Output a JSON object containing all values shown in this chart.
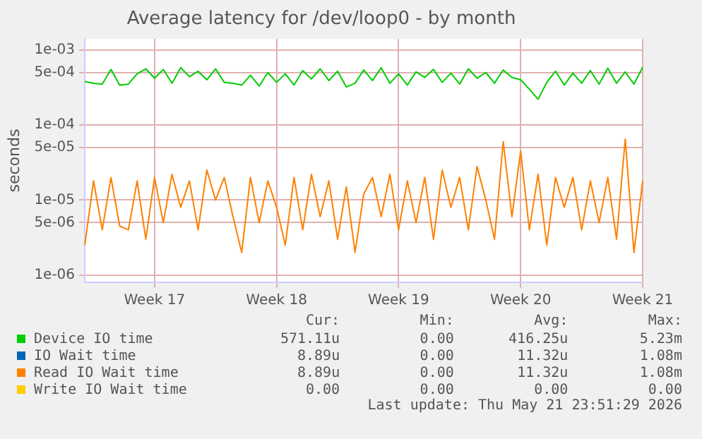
{
  "chart_data": {
    "type": "line",
    "title": "Average latency for /dev/loop0 - by month",
    "ylabel": "seconds",
    "log": "y",
    "grid": true,
    "legend": "bottom",
    "marker": "none",
    "line_style": "solid",
    "categories": [
      null,
      null,
      null,
      null,
      null,
      null,
      null,
      null,
      "Week 17",
      null,
      null,
      null,
      null,
      null,
      null,
      null,
      null,
      null,
      null,
      null,
      null,
      null,
      "Week 18",
      null,
      null,
      null,
      null,
      null,
      null,
      null,
      null,
      null,
      null,
      null,
      null,
      null,
      "Week 19",
      null,
      null,
      null,
      null,
      null,
      null,
      null,
      null,
      null,
      null,
      null,
      null,
      null,
      "Week 20",
      null,
      null,
      null,
      null,
      null,
      null,
      null,
      null,
      null,
      null,
      null,
      null,
      null,
      "Week 21"
    ],
    "ylim": [
      8e-07,
      0.0014
    ],
    "yticks": [
      {
        "value": 1e-06,
        "label": "1e-06"
      },
      {
        "value": 5e-06,
        "label": "5e-06"
      },
      {
        "value": 1e-05,
        "label": "1e-05"
      },
      {
        "value": 5e-05,
        "label": "5e-05"
      },
      {
        "value": 0.0001,
        "label": "1e-04"
      },
      {
        "value": 0.0005,
        "label": "5e-04"
      },
      {
        "value": 0.001,
        "label": "1e-03"
      }
    ],
    "series": [
      {
        "name": "Device IO time",
        "color": "#00cc00",
        "values": [
          0.00038,
          0.00036,
          0.00035,
          0.00055,
          0.00034,
          0.00035,
          0.00048,
          0.00056,
          0.00042,
          0.00055,
          0.00036,
          0.00058,
          0.00044,
          0.00052,
          0.0004,
          0.00056,
          0.00037,
          0.00036,
          0.00034,
          0.00046,
          0.00033,
          0.0005,
          0.00037,
          0.00048,
          0.00034,
          0.00053,
          0.00041,
          0.00056,
          0.00039,
          0.00052,
          0.00032,
          0.00036,
          0.00054,
          0.00039,
          0.00058,
          0.00036,
          0.00048,
          0.00034,
          0.00051,
          0.00043,
          0.00055,
          0.00037,
          0.00049,
          0.00035,
          0.00056,
          0.00042,
          0.0005,
          0.00036,
          0.00054,
          0.00043,
          0.0004,
          0.0003,
          0.00022,
          0.00037,
          0.00052,
          0.00034,
          0.00049,
          0.00036,
          0.00053,
          0.00035,
          0.00057,
          0.00036,
          0.00051,
          0.00035,
          0.00059
        ]
      },
      {
        "name": "IO Wait time",
        "color": "#0066b3",
        "values": [
          null,
          null,
          null,
          null,
          null,
          null,
          null,
          null,
          null,
          null,
          null,
          null,
          null,
          null,
          null,
          null,
          null,
          null,
          null,
          null,
          null,
          null,
          null,
          null,
          null,
          null,
          null,
          null,
          null,
          null,
          null,
          null,
          null,
          null,
          null,
          null,
          null,
          null,
          null,
          null,
          null,
          null,
          null,
          null,
          null,
          null,
          null,
          null,
          null,
          null,
          null,
          null,
          null,
          null,
          null,
          null,
          null,
          null,
          null,
          null,
          null,
          null,
          null,
          null,
          null
        ]
      },
      {
        "name": "Read IO Wait time",
        "color": "#ff8000",
        "values": [
          2.5e-06,
          1.8e-05,
          4e-06,
          2e-05,
          4.5e-06,
          4e-06,
          1.8e-05,
          3e-06,
          2e-05,
          5e-06,
          2.2e-05,
          8e-06,
          1.8e-05,
          4e-06,
          2.5e-05,
          1e-05,
          2e-05,
          6e-06,
          2e-06,
          2e-05,
          5e-06,
          1.8e-05,
          8e-06,
          2.5e-06,
          2e-05,
          4e-06,
          2.2e-05,
          6e-06,
          1.8e-05,
          3e-06,
          1.5e-05,
          2e-06,
          1.2e-05,
          2e-05,
          6e-06,
          2.2e-05,
          4e-06,
          1.8e-05,
          5e-06,
          2e-05,
          3e-06,
          2.5e-05,
          8e-06,
          2e-05,
          4e-06,
          2.8e-05,
          1e-05,
          3e-06,
          6e-05,
          6e-06,
          4.5e-05,
          4e-06,
          2.2e-05,
          2.5e-06,
          2e-05,
          8e-06,
          2e-05,
          4e-06,
          1.8e-05,
          5e-06,
          2e-05,
          3e-06,
          6.5e-05,
          2e-06,
          1.8e-05
        ]
      },
      {
        "name": "Write IO Wait time",
        "color": "#ffcc00",
        "values": [
          null,
          null,
          null,
          null,
          null,
          null,
          null,
          null,
          null,
          null,
          null,
          null,
          null,
          null,
          null,
          null,
          null,
          null,
          null,
          null,
          null,
          null,
          null,
          null,
          null,
          null,
          null,
          null,
          null,
          null,
          null,
          null,
          null,
          null,
          null,
          null,
          null,
          null,
          null,
          null,
          null,
          null,
          null,
          null,
          null,
          null,
          null,
          null,
          null,
          null,
          null,
          null,
          null,
          null,
          null,
          null,
          null,
          null,
          null,
          null,
          null,
          null,
          null,
          null,
          null
        ]
      }
    ],
    "annotations": [
      "Cur:",
      "Min:",
      "Avg:",
      "Max:",
      "571.11u",
      "0.00",
      "416.25u",
      "5.23m",
      "8.89u",
      "0.00",
      "11.32u",
      "1.08m",
      "8.89u",
      "0.00",
      "11.32u",
      "1.08m",
      "0.00",
      "0.00",
      "0.00",
      "0.00",
      "Last update: Thu May 21 23:51:29 2026"
    ]
  }
}
